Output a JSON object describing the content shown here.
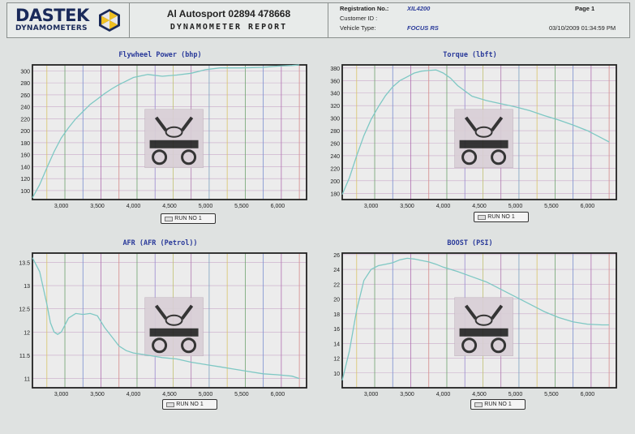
{
  "header": {
    "logo": "DASTEK",
    "logo_sub": "DYNAMOMETERS",
    "company": "Al Autosport 02894 478668",
    "report_title": "DYNAMOMETER REPORT",
    "registration_label": "Registration No.:",
    "registration_value": "XIL4200",
    "customer_label": "Customer ID :",
    "customer_value": "",
    "vehicle_label": "Vehicle Type:",
    "vehicle_value": "FOCUS RS",
    "page_label": "Page 1",
    "datetime": "03/10/2009 01:34:59 PM"
  },
  "colors": {
    "trace": "#7ec8c4",
    "frame": "#222222",
    "plot_bg": "#ececec",
    "series_title": "#2a3a9a",
    "grid_v": [
      "#d9c46a",
      "#6fa36f",
      "#7a8fd0",
      "#b06fb0",
      "#d58a8a",
      "#6fa36f",
      "#9a8ad0",
      "#c0c070",
      "#b07ab0",
      "#7aa0c0"
    ],
    "grid_h": "#c9a9c9"
  },
  "chart_data": [
    {
      "type": "line",
      "title": "Flywheel Power (bhp)",
      "xlim": [
        2600,
        6400
      ],
      "xticks": [
        "3,000",
        "3,500",
        "4,000",
        "4,500",
        "5,000",
        "5,500",
        "6,000"
      ],
      "ylim": [
        85,
        310
      ],
      "yticks": [
        "100",
        "120",
        "140",
        "160",
        "180",
        "200",
        "220",
        "240",
        "260",
        "280",
        "300"
      ],
      "legend": "RUN NO 1",
      "series": [
        {
          "x": [
            2600,
            2700,
            2800,
            2900,
            3000,
            3100,
            3200,
            3300,
            3400,
            3500,
            3600,
            3700,
            3800,
            3900,
            4000,
            4200,
            4400,
            4600,
            4800,
            5000,
            5200,
            5500,
            5800,
            6000,
            6200,
            6300
          ],
          "y": [
            88,
            110,
            138,
            165,
            188,
            205,
            220,
            232,
            244,
            253,
            262,
            270,
            277,
            283,
            289,
            294,
            291,
            293,
            296,
            302,
            305,
            305,
            306,
            308,
            309,
            310
          ]
        }
      ]
    },
    {
      "type": "line",
      "title": "Torque (lbft)",
      "xlim": [
        2600,
        6400
      ],
      "xticks": [
        "3,000",
        "3,500",
        "4,000",
        "4,500",
        "5,000",
        "5,500",
        "6,000"
      ],
      "ylim": [
        170,
        385
      ],
      "yticks": [
        "180",
        "200",
        "220",
        "240",
        "260",
        "280",
        "300",
        "320",
        "340",
        "360",
        "380"
      ],
      "legend": "RUN NO 1",
      "series": [
        {
          "x": [
            2600,
            2700,
            2800,
            2900,
            3000,
            3100,
            3200,
            3300,
            3400,
            3500,
            3600,
            3700,
            3800,
            3900,
            4000,
            4100,
            4200,
            4400,
            4600,
            4800,
            5000,
            5200,
            5400,
            5600,
            5800,
            6000,
            6200,
            6300
          ],
          "y": [
            178,
            205,
            240,
            272,
            298,
            318,
            336,
            350,
            360,
            366,
            372,
            375,
            376,
            377,
            372,
            364,
            352,
            335,
            328,
            323,
            318,
            312,
            304,
            297,
            289,
            280,
            268,
            262
          ]
        }
      ]
    },
    {
      "type": "line",
      "title": "AFR (AFR (Petrol))",
      "xlim": [
        2600,
        6400
      ],
      "xticks": [
        "3,000",
        "3,500",
        "4,000",
        "4,500",
        "5,000",
        "5,500",
        "6,000"
      ],
      "ylim": [
        10.8,
        13.7
      ],
      "yticks": [
        "11",
        "11.5",
        "12",
        "12.5",
        "13",
        "13.5"
      ],
      "legend": "RUN NO 1",
      "series": [
        {
          "x": [
            2600,
            2700,
            2800,
            2850,
            2900,
            2950,
            3000,
            3100,
            3200,
            3300,
            3400,
            3500,
            3600,
            3700,
            3800,
            3900,
            4000,
            4200,
            4400,
            4600,
            4800,
            5000,
            5200,
            5400,
            5600,
            5800,
            6000,
            6200,
            6300
          ],
          "y": [
            13.6,
            13.3,
            12.6,
            12.2,
            12.0,
            11.95,
            12.0,
            12.3,
            12.4,
            12.38,
            12.4,
            12.35,
            12.1,
            11.9,
            11.7,
            11.6,
            11.55,
            11.5,
            11.45,
            11.42,
            11.35,
            11.3,
            11.25,
            11.2,
            11.15,
            11.1,
            11.08,
            11.05,
            11.0
          ]
        }
      ]
    },
    {
      "type": "line",
      "title": "BOOST (PSI)",
      "xlim": [
        2600,
        6400
      ],
      "xticks": [
        "3,000",
        "3,500",
        "4,000",
        "4,500",
        "5,000",
        "5,500",
        "6,000"
      ],
      "ylim": [
        8,
        26.2
      ],
      "yticks": [
        "10",
        "12",
        "14",
        "16",
        "18",
        "20",
        "22",
        "24",
        "26"
      ],
      "legend": "RUN NO 1",
      "series": [
        {
          "x": [
            2600,
            2700,
            2800,
            2900,
            3000,
            3100,
            3200,
            3300,
            3400,
            3500,
            3600,
            3700,
            3800,
            3900,
            4000,
            4200,
            4400,
            4600,
            4800,
            5000,
            5200,
            5400,
            5600,
            5800,
            6000,
            6200,
            6300
          ],
          "y": [
            9.0,
            13.0,
            18.5,
            22.5,
            24.0,
            24.5,
            24.7,
            24.9,
            25.3,
            25.5,
            25.4,
            25.2,
            25.0,
            24.7,
            24.3,
            23.7,
            23.0,
            22.3,
            21.3,
            20.3,
            19.3,
            18.3,
            17.5,
            16.9,
            16.6,
            16.5,
            16.5
          ]
        }
      ]
    }
  ]
}
